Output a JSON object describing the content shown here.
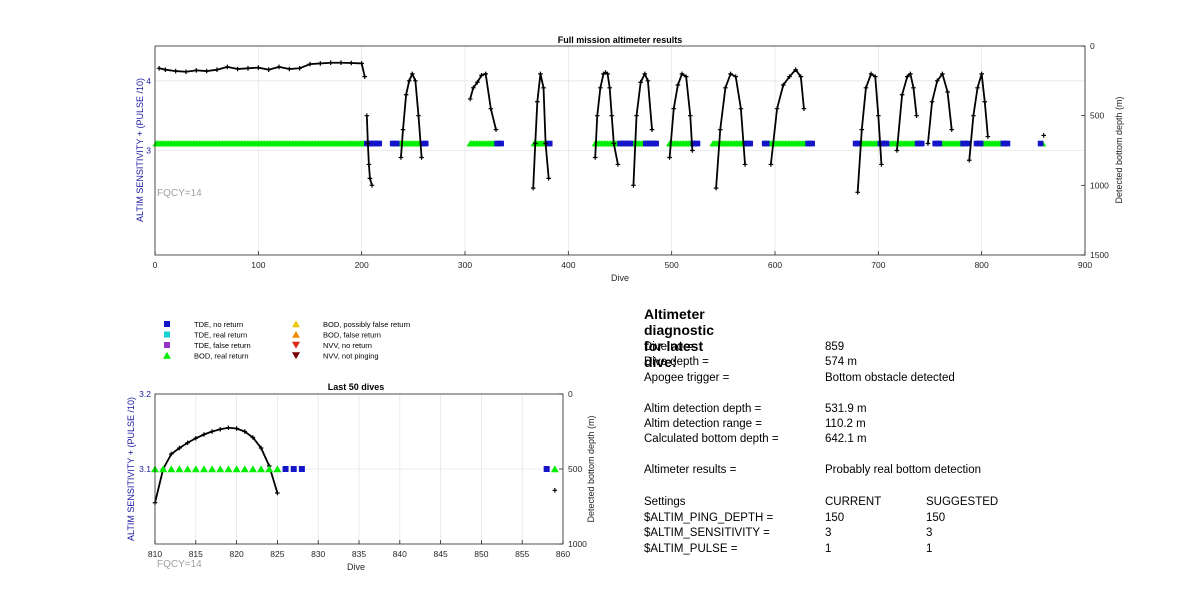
{
  "chart_data": [
    {
      "type": "scatter",
      "title": "Full mission altimeter results",
      "xlabel": "Dive",
      "ylabel": "ALTIM SENSITIVITY + (PULSE /10)",
      "y2label": "Detected bottom depth (m)",
      "annotation": "FQCY=14",
      "xlim": [
        0,
        900
      ],
      "ylim": [
        1.5,
        4.5
      ],
      "y2lim": [
        0,
        1500
      ],
      "y2_reversed": true,
      "xticks": [
        "0",
        "100",
        "200",
        "300",
        "400",
        "500",
        "600",
        "700",
        "800",
        "900"
      ],
      "yticks": [
        "3",
        "4"
      ],
      "y2ticks": [
        "0",
        "500",
        "1000",
        "1500"
      ],
      "grid": true,
      "sensitivity_level": 3.1,
      "bod_real_return_dives": [
        [
          1,
          203
        ],
        [
          236,
          258
        ],
        [
          305,
          330
        ],
        [
          367,
          378
        ],
        [
          426,
          448
        ],
        [
          463,
          482
        ],
        [
          498,
          520
        ],
        [
          540,
          570
        ],
        [
          592,
          630
        ],
        [
          680,
          700
        ],
        [
          712,
          738
        ],
        [
          760,
          782
        ],
        [
          800,
          820
        ],
        [
          859,
          859
        ]
      ],
      "tde_no_return_dives": [
        [
          205,
          218
        ],
        [
          230,
          235
        ],
        [
          260,
          262
        ],
        [
          331,
          335
        ],
        [
          380,
          383
        ],
        [
          450,
          460
        ],
        [
          475,
          486
        ],
        [
          521,
          525
        ],
        [
          572,
          576
        ],
        [
          590,
          592
        ],
        [
          632,
          636
        ],
        [
          678,
          680
        ],
        [
          702,
          708
        ],
        [
          738,
          742
        ],
        [
          755,
          760
        ],
        [
          782,
          786
        ],
        [
          795,
          800
        ],
        [
          821,
          826
        ],
        [
          857,
          858
        ]
      ],
      "bottom_depth_series": [
        {
          "dives": [
            4,
            10,
            20,
            30,
            40,
            50,
            60,
            70,
            80,
            90,
            100,
            110,
            120,
            130,
            140,
            150,
            160,
            170,
            180,
            190,
            200,
            203
          ],
          "depths": [
            160,
            170,
            180,
            185,
            175,
            180,
            170,
            150,
            165,
            160,
            155,
            170,
            150,
            165,
            160,
            130,
            125,
            120,
            120,
            122,
            125,
            220
          ]
        },
        {
          "dives": [
            205,
            206,
            207,
            208,
            210
          ],
          "depths": [
            500,
            700,
            850,
            950,
            1000
          ]
        },
        {
          "dives": [
            238,
            240,
            243,
            246,
            249,
            252,
            255,
            258
          ],
          "depths": [
            800,
            600,
            350,
            250,
            200,
            250,
            500,
            800
          ]
        },
        {
          "dives": [
            305,
            308,
            312,
            316,
            320,
            325,
            330
          ],
          "depths": [
            380,
            300,
            260,
            210,
            200,
            450,
            600
          ]
        },
        {
          "dives": [
            366,
            368,
            370,
            373,
            376,
            378,
            381
          ],
          "depths": [
            1020,
            700,
            400,
            200,
            300,
            700,
            950
          ]
        },
        {
          "dives": [
            426,
            428,
            431,
            434,
            436,
            438,
            440,
            442,
            444,
            448
          ],
          "depths": [
            800,
            500,
            300,
            200,
            190,
            200,
            300,
            500,
            700,
            850
          ]
        },
        {
          "dives": [
            463,
            466,
            470,
            474,
            477,
            481
          ],
          "depths": [
            1000,
            500,
            260,
            200,
            250,
            600
          ]
        },
        {
          "dives": [
            498,
            502,
            506,
            510,
            514,
            518,
            520
          ],
          "depths": [
            800,
            450,
            280,
            200,
            220,
            500,
            750
          ]
        },
        {
          "dives": [
            543,
            547,
            552,
            557,
            562,
            567,
            571
          ],
          "depths": [
            1020,
            600,
            300,
            200,
            220,
            450,
            850
          ]
        },
        {
          "dives": [
            596,
            602,
            608,
            614,
            620,
            625,
            628
          ],
          "depths": [
            850,
            450,
            280,
            220,
            170,
            220,
            450
          ]
        },
        {
          "dives": [
            680,
            684,
            688,
            693,
            697,
            700,
            703
          ],
          "depths": [
            1050,
            600,
            300,
            200,
            220,
            500,
            850
          ]
        },
        {
          "dives": [
            718,
            723,
            728,
            731,
            734,
            737
          ],
          "depths": [
            750,
            350,
            220,
            200,
            300,
            500
          ]
        },
        {
          "dives": [
            748,
            752,
            757,
            762,
            767,
            771
          ],
          "depths": [
            700,
            400,
            250,
            200,
            330,
            600
          ]
        },
        {
          "dives": [
            788,
            792,
            796,
            800,
            803,
            806
          ],
          "depths": [
            820,
            500,
            300,
            200,
            400,
            650
          ]
        },
        {
          "dives": [
            860
          ],
          "depths": [
            642
          ]
        }
      ]
    },
    {
      "type": "scatter",
      "title": "Last 50 dives",
      "xlabel": "Dive",
      "ylabel": "ALTIM SENSITIVITY + (PULSE /10)",
      "y2label": "Detected bottom depth (m)",
      "annotation": "FQCY=14",
      "xlim": [
        810,
        860
      ],
      "ylim": [
        3.0,
        3.2
      ],
      "y2lim": [
        0,
        1000
      ],
      "y2_reversed": true,
      "xticks": [
        "810",
        "815",
        "820",
        "825",
        "830",
        "835",
        "840",
        "845",
        "850",
        "855",
        "860"
      ],
      "yticks": [
        "3.1",
        "3.2"
      ],
      "y2ticks": [
        "0",
        "500",
        "1000"
      ],
      "grid": true,
      "sensitivity_level": 3.1,
      "bod_real_return_dives": [
        810,
        811,
        812,
        813,
        814,
        815,
        816,
        817,
        818,
        819,
        820,
        821,
        822,
        823,
        824,
        825,
        859
      ],
      "tde_no_return_dives": [
        826,
        827,
        828,
        858
      ],
      "bottom_depth": {
        "dives": [
          810,
          811,
          812,
          813,
          814,
          815,
          816,
          817,
          818,
          819,
          820,
          821,
          822,
          823,
          824,
          825,
          859
        ],
        "depths": [
          725,
          500,
          400,
          360,
          325,
          295,
          270,
          250,
          235,
          225,
          230,
          250,
          290,
          360,
          480,
          660,
          642
        ]
      }
    }
  ],
  "legend": [
    {
      "label": "TDE, no return",
      "marker": "square",
      "color": "#1414c8"
    },
    {
      "label": "TDE, real return",
      "marker": "square",
      "color": "#19d2d2"
    },
    {
      "label": "TDE, false return",
      "marker": "square",
      "color": "#9632c8"
    },
    {
      "label": "BOD, real return",
      "marker": "triangle",
      "color": "#00ee00"
    },
    {
      "label": "BOD, possibly false return",
      "marker": "triangle",
      "color": "#f0c800"
    },
    {
      "label": "BOD, false return",
      "marker": "triangle",
      "color": "#f08c00"
    },
    {
      "label": "NVV, no return",
      "marker": "triangle-down",
      "color": "#dc2814"
    },
    {
      "label": "NVV, not pinging",
      "marker": "triangle-down",
      "color": "#780000"
    }
  ],
  "diagnostic": {
    "title": "Altimeter diagnostic for latest dive:",
    "rows": [
      {
        "label": "Dive no =",
        "value": "859"
      },
      {
        "label": "Dive depth =",
        "value": "574 m"
      },
      {
        "label": "Apogee trigger =",
        "value": "Bottom obstacle detected"
      },
      {
        "label": "Altim detection depth =",
        "value": "531.9 m"
      },
      {
        "label": "Altim detection range =",
        "value": "110.2 m"
      },
      {
        "label": "Calculated bottom depth =",
        "value": "642.1 m"
      },
      {
        "label": "Altimeter results =",
        "value": "Probably real bottom detection"
      }
    ],
    "settings_header": {
      "label": "Settings",
      "current": "CURRENT",
      "suggested": "SUGGESTED"
    },
    "settings": [
      {
        "name": "$ALTIM_PING_DEPTH =",
        "current": "150",
        "suggested": "150"
      },
      {
        "name": "$ALTIM_SENSITIVITY =",
        "current": "3",
        "suggested": "3"
      },
      {
        "name": "$ALTIM_PULSE =",
        "current": "1",
        "suggested": "1"
      }
    ]
  },
  "colors": {
    "axis_left": "#1a1aa0",
    "annotation": "#a0a0a0",
    "grid": "#e6e6e6",
    "depth_line": "#000000"
  }
}
